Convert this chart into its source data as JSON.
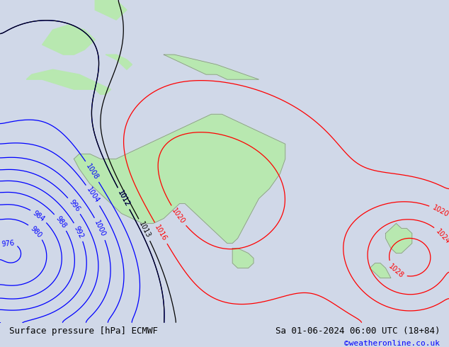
{
  "title_left": "Surface pressure [hPa] ECMWF",
  "title_right": "Sa 01-06-2024 06:00 UTC (18+84)",
  "credit": "©weatheronline.co.uk",
  "bg_color": "#d0d8e8",
  "land_color": "#b8e8b0",
  "figsize": [
    6.34,
    4.9
  ],
  "dpi": 100
}
